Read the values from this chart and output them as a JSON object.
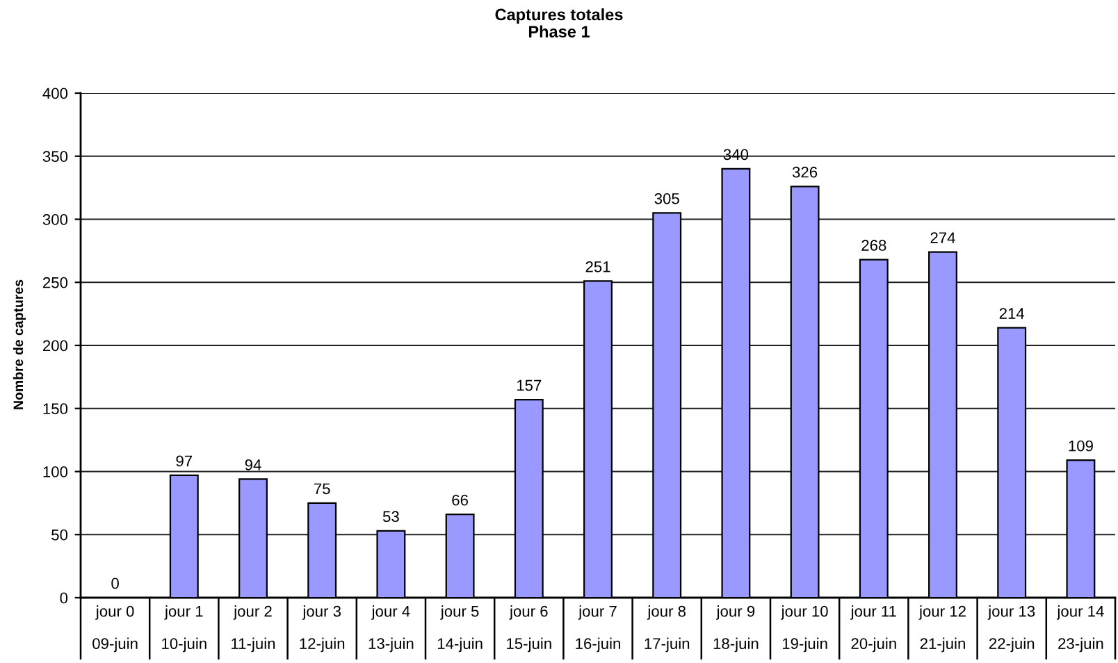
{
  "chart_data": {
    "type": "bar",
    "title": "Captures totales\nPhase 1",
    "ylabel": "Nombre de captures",
    "categories": [
      "jour 0\n09-juin",
      "jour 1\n10-juin",
      "jour 2\n11-juin",
      "jour 3\n12-juin",
      "jour 4\n13-juin",
      "jour 5\n14-juin",
      "jour 6\n15-juin",
      "jour 7\n16-juin",
      "jour 8\n17-juin",
      "jour 9\n18-juin",
      "jour 10\n19-juin",
      "jour 11\n20-juin",
      "jour 12\n21-juin",
      "jour 13\n22-juin",
      "jour 14\n23-juin"
    ],
    "values": [
      0,
      97,
      94,
      75,
      53,
      66,
      157,
      251,
      305,
      340,
      326,
      268,
      274,
      214,
      109
    ],
    "color": "#9999ff",
    "ylim": [
      0,
      400
    ],
    "yticks": [
      0,
      50,
      100,
      150,
      200,
      250,
      300,
      350,
      400
    ],
    "grid": "y",
    "data_labels": true
  }
}
